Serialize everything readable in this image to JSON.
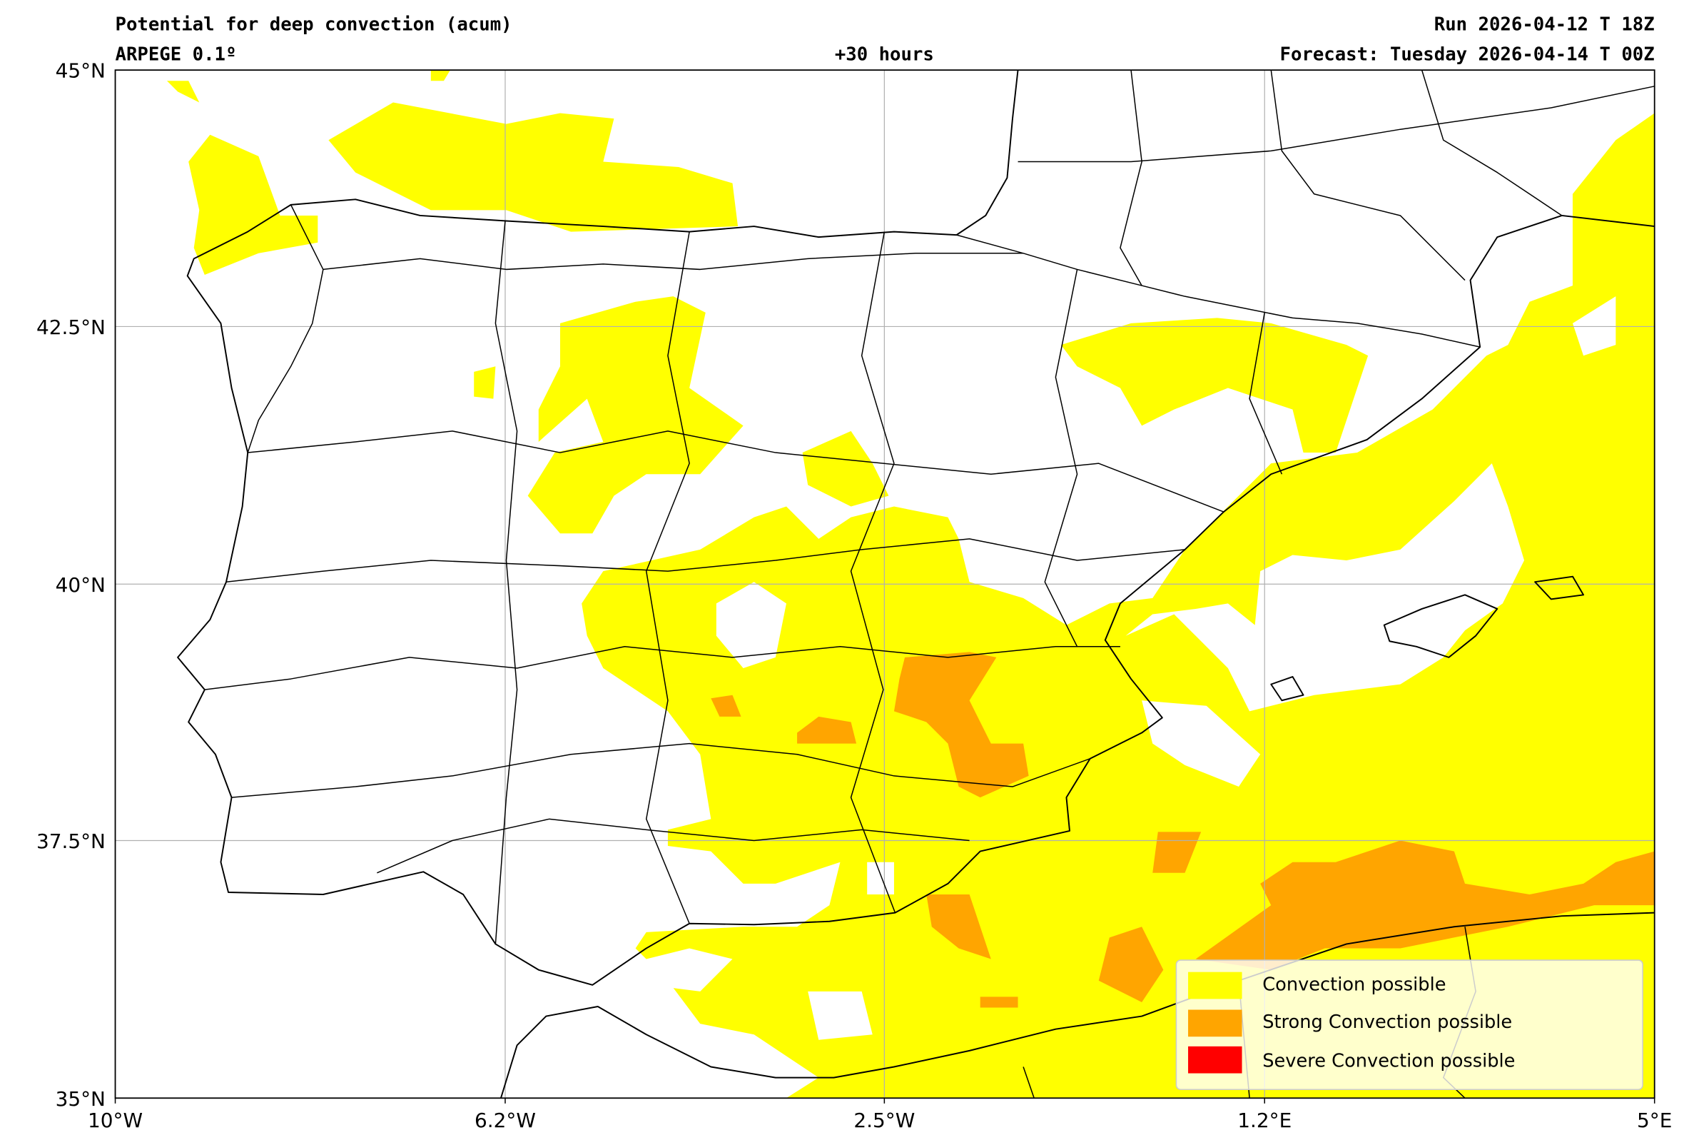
{
  "header": {
    "title": "Potential for deep convection (acum)",
    "run": "Run 2026-04-12 T 18Z",
    "model": "ARPEGE 0.1º",
    "lead": "+30 hours",
    "forecast": "Forecast: Tuesday 2026-04-14 T 00Z"
  },
  "chart_data": {
    "type": "heatmap",
    "title": "Potential for deep convection (acum)",
    "xlabel": "",
    "ylabel": "",
    "xlim": [
      -10,
      5
    ],
    "ylim": [
      35,
      45
    ],
    "grid": true,
    "x_ticks": [
      {
        "value": -10,
        "label": "10°W"
      },
      {
        "value": -6.2,
        "label": "6.2°W"
      },
      {
        "value": -2.5,
        "label": "2.5°W"
      },
      {
        "value": 1.2,
        "label": "1.2°E"
      },
      {
        "value": 5,
        "label": "5°E"
      }
    ],
    "y_ticks": [
      {
        "value": 45,
        "label": "45°N"
      },
      {
        "value": 42.5,
        "label": "42.5°N"
      },
      {
        "value": 40,
        "label": "40°N"
      },
      {
        "value": 37.5,
        "label": "37.5°N"
      },
      {
        "value": 35,
        "label": "35°N"
      }
    ],
    "legend_position": "bottom-right",
    "legend": [
      {
        "label": "Convection possible",
        "color": "#ffff00"
      },
      {
        "label": "Strong Convection possible",
        "color": "#ffa500"
      },
      {
        "label": "Severe Convection possible",
        "color": "#ff0000"
      }
    ]
  }
}
